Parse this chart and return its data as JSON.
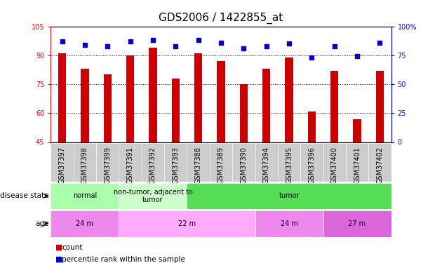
{
  "title": "GDS2006 / 1422855_at",
  "samples": [
    "GSM37397",
    "GSM37398",
    "GSM37399",
    "GSM37391",
    "GSM37392",
    "GSM37393",
    "GSM37388",
    "GSM37389",
    "GSM37390",
    "GSM37394",
    "GSM37395",
    "GSM37396",
    "GSM37400",
    "GSM37401",
    "GSM37402"
  ],
  "counts": [
    91,
    83,
    80,
    90,
    94,
    78,
    91,
    87,
    75,
    83,
    89,
    61,
    82,
    57,
    82
  ],
  "percentiles": [
    87,
    84,
    83,
    87,
    88,
    83,
    88,
    86,
    81,
    83,
    85,
    73,
    83,
    74,
    86
  ],
  "ylim_left": [
    45,
    105
  ],
  "ylim_right": [
    0,
    100
  ],
  "yticks_left": [
    45,
    60,
    75,
    90,
    105
  ],
  "yticks_right": [
    0,
    25,
    50,
    75,
    100
  ],
  "ytick_labels_left": [
    "45",
    "60",
    "75",
    "90",
    "105"
  ],
  "ytick_labels_right": [
    "0",
    "25",
    "50",
    "75",
    "100%"
  ],
  "bar_color": "#cc0000",
  "dot_color": "#0000cc",
  "bar_width": 0.35,
  "disease_state_groups": [
    {
      "label": "normal",
      "start": 0,
      "end": 3,
      "color": "#aaffaa"
    },
    {
      "label": "non-tumor, adjacent to\ntumor",
      "start": 3,
      "end": 6,
      "color": "#ccffcc"
    },
    {
      "label": "tumor",
      "start": 6,
      "end": 15,
      "color": "#55dd55"
    }
  ],
  "age_groups": [
    {
      "label": "24 m",
      "start": 0,
      "end": 3,
      "color": "#ee88ee"
    },
    {
      "label": "22 m",
      "start": 3,
      "end": 9,
      "color": "#ffaaff"
    },
    {
      "label": "24 m",
      "start": 9,
      "end": 12,
      "color": "#ee88ee"
    },
    {
      "label": "27 m",
      "start": 12,
      "end": 15,
      "color": "#dd66dd"
    }
  ],
  "sample_bg_color": "#cccccc",
  "legend_items": [
    {
      "label": "count",
      "color": "#cc0000"
    },
    {
      "label": "percentile rank within the sample",
      "color": "#0000cc"
    }
  ],
  "bg_color": "#ffffff",
  "title_fontsize": 11,
  "tick_fontsize": 7,
  "annot_fontsize": 8
}
